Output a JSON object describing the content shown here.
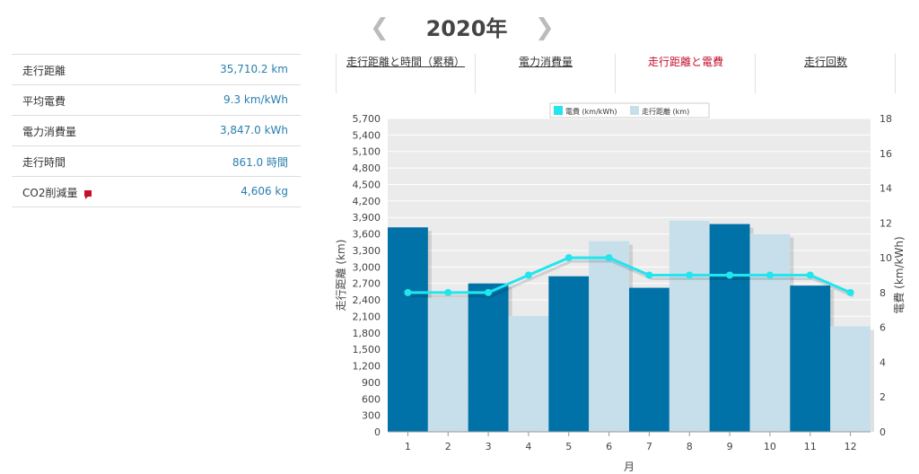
{
  "year_nav": {
    "prev_icon": "chevron-left-icon",
    "year": "2020年",
    "next_icon": "chevron-right-icon"
  },
  "stats": [
    {
      "label": "走行距離",
      "value": "35,710.2 km"
    },
    {
      "label": "平均電費",
      "value": "9.3 km/kWh"
    },
    {
      "label": "電力消費量",
      "value": "3,847.0 kWh"
    },
    {
      "label": "走行時間",
      "value": "861.0 時間"
    },
    {
      "label": "CO2削減量",
      "value": "4,606 kg",
      "icon": "comment-icon"
    }
  ],
  "tabs": [
    {
      "label": "走行距離と時間（累積）",
      "active": false
    },
    {
      "label": "電力消費量",
      "active": false
    },
    {
      "label": "走行距離と電費",
      "active": true
    },
    {
      "label": "走行回数",
      "active": false
    }
  ],
  "colors": {
    "accent": "#c4102c",
    "link": "#2a7fae",
    "bar_dark": "#0072a8",
    "bar_light": "#c7dfea",
    "line": "#22e5ee",
    "plot_bg": "#ebebeb"
  },
  "chart_data": {
    "type": "bar",
    "categories": [
      "1",
      "2",
      "3",
      "4",
      "5",
      "6",
      "7",
      "8",
      "9",
      "10",
      "11",
      "12"
    ],
    "xlabel": "月",
    "ylabel": "走行距離 (km)",
    "y2label": "電費 (km/kWh)",
    "ylim": [
      0,
      5700
    ],
    "y_ticks": [
      "0",
      "300",
      "600",
      "900",
      "1,200",
      "1,500",
      "1,800",
      "2,100",
      "2,400",
      "2,700",
      "3,000",
      "3,300",
      "3,600",
      "3,900",
      "4,200",
      "4,500",
      "4,800",
      "5,100",
      "5,400",
      "5,700"
    ],
    "y2lim": [
      0,
      18
    ],
    "y2_ticks": [
      "0",
      "2",
      "4",
      "6",
      "8",
      "10",
      "12",
      "14",
      "16",
      "18"
    ],
    "grid": true,
    "legend_position": "top",
    "series": [
      {
        "name": "走行距離 (km)",
        "type": "bar",
        "values": [
          3720,
          2440,
          2700,
          2110,
          2830,
          3470,
          2620,
          3840,
          3780,
          3600,
          2660,
          1920
        ]
      },
      {
        "name": "電費 (km/kWh)",
        "type": "line",
        "axis": "right",
        "values": [
          8,
          8,
          8,
          9,
          10,
          10,
          9,
          9,
          9,
          9,
          9,
          8
        ]
      }
    ]
  }
}
